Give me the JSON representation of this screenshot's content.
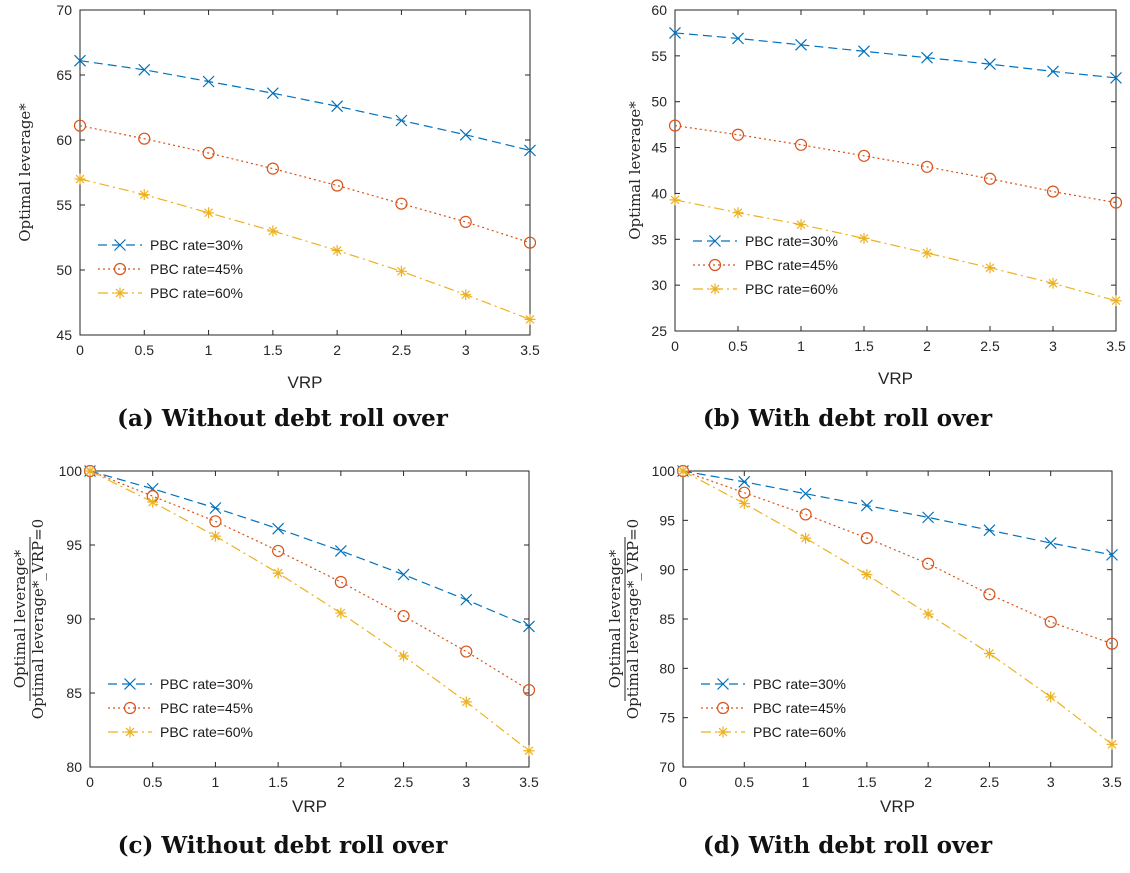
{
  "captions": [
    "(a) Without debt roll over",
    "(b) With debt roll over",
    "(c) Without debt roll over",
    "(d) With debt roll over"
  ],
  "colors": {
    "s30": "#0072BD",
    "s45": "#D95319",
    "s60": "#EDB120"
  },
  "chart_data": [
    {
      "type": "line",
      "xlabel": "VRP",
      "ylabel": "Optimal leverage*",
      "xlim": [
        0,
        3.5
      ],
      "ylim": [
        45,
        70
      ],
      "xticks": [
        "0",
        "0.5",
        "1",
        "1.5",
        "2",
        "2.5",
        "3",
        "3.5"
      ],
      "yticks": [
        "45",
        "50",
        "55",
        "60",
        "65",
        "70"
      ],
      "legend_position": "bottom-left",
      "x": [
        0,
        0.5,
        1,
        1.5,
        2,
        2.5,
        3,
        3.5
      ],
      "series": [
        {
          "name": "PBC rate=30%",
          "values": [
            66.1,
            65.4,
            64.5,
            63.6,
            62.6,
            61.5,
            60.4,
            59.2
          ]
        },
        {
          "name": "PBC rate=45%",
          "values": [
            61.1,
            60.1,
            59.0,
            57.8,
            56.5,
            55.1,
            53.7,
            52.1
          ]
        },
        {
          "name": "PBC rate=60%",
          "values": [
            57.0,
            55.8,
            54.4,
            53.0,
            51.5,
            49.9,
            48.1,
            46.2
          ]
        }
      ]
    },
    {
      "type": "line",
      "xlabel": "VRP",
      "ylabel": "Optimal leverage*",
      "xlim": [
        0,
        3.5
      ],
      "ylim": [
        25,
        60
      ],
      "xticks": [
        "0",
        "0.5",
        "1",
        "1.5",
        "2",
        "2.5",
        "3",
        "3.5"
      ],
      "yticks": [
        "25",
        "30",
        "35",
        "40",
        "45",
        "50",
        "55",
        "60"
      ],
      "legend_position": "bottom-left",
      "x": [
        0,
        0.5,
        1,
        1.5,
        2,
        2.5,
        3,
        3.5
      ],
      "series": [
        {
          "name": "PBC rate=30%",
          "values": [
            57.5,
            56.9,
            56.2,
            55.5,
            54.8,
            54.1,
            53.3,
            52.6
          ]
        },
        {
          "name": "PBC rate=45%",
          "values": [
            47.4,
            46.4,
            45.3,
            44.1,
            42.9,
            41.6,
            40.2,
            39.0
          ]
        },
        {
          "name": "PBC rate=60%",
          "values": [
            39.3,
            37.9,
            36.6,
            35.1,
            33.5,
            31.9,
            30.2,
            28.3
          ]
        }
      ]
    },
    {
      "type": "line",
      "xlabel": "VRP",
      "ylabel": "Optimal leverage* / Optimal leverage*_VRP=0",
      "xlim": [
        0,
        3.5
      ],
      "ylim": [
        80,
        100
      ],
      "xticks": [
        "0",
        "0.5",
        "1",
        "1.5",
        "2",
        "2.5",
        "3",
        "3.5"
      ],
      "yticks": [
        "80",
        "85",
        "90",
        "95",
        "100"
      ],
      "legend_position": "bottom-left",
      "x": [
        0,
        0.5,
        1,
        1.5,
        2,
        2.5,
        3,
        3.5
      ],
      "series": [
        {
          "name": "PBC rate=30%",
          "values": [
            100,
            98.8,
            97.5,
            96.1,
            94.6,
            93.0,
            91.3,
            89.5
          ]
        },
        {
          "name": "PBC rate=45%",
          "values": [
            100,
            98.3,
            96.6,
            94.6,
            92.5,
            90.2,
            87.8,
            85.2
          ]
        },
        {
          "name": "PBC rate=60%",
          "values": [
            100,
            97.9,
            95.6,
            93.1,
            90.4,
            87.5,
            84.4,
            81.1
          ]
        }
      ]
    },
    {
      "type": "line",
      "xlabel": "VRP",
      "ylabel": "Optimal leverage* / Optimal leverage*_VRP=0",
      "xlim": [
        0,
        3.5
      ],
      "ylim": [
        70,
        100
      ],
      "xticks": [
        "0",
        "0.5",
        "1",
        "1.5",
        "2",
        "2.5",
        "3",
        "3.5"
      ],
      "yticks": [
        "70",
        "75",
        "80",
        "85",
        "90",
        "95",
        "100"
      ],
      "legend_position": "bottom-left",
      "x": [
        0,
        0.5,
        1,
        1.5,
        2,
        2.5,
        3,
        3.5
      ],
      "series": [
        {
          "name": "PBC rate=30%",
          "values": [
            100,
            98.9,
            97.7,
            96.5,
            95.3,
            94.0,
            92.7,
            91.5
          ]
        },
        {
          "name": "PBC rate=45%",
          "values": [
            100,
            97.8,
            95.6,
            93.2,
            90.6,
            87.5,
            84.7,
            82.5
          ]
        },
        {
          "name": "PBC rate=60%",
          "values": [
            100,
            96.7,
            93.2,
            89.5,
            85.5,
            81.5,
            77.1,
            72.3
          ]
        }
      ]
    }
  ]
}
